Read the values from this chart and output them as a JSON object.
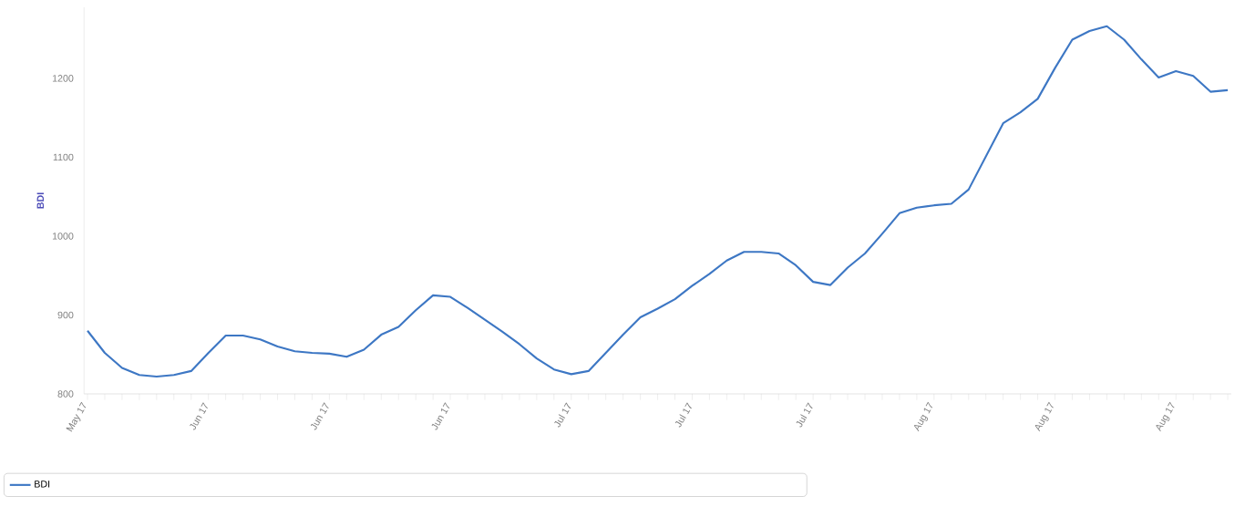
{
  "chart_data": {
    "type": "line",
    "ylabel": "BDI",
    "legend": "bottom",
    "marker": "none",
    "categories": [
      "May 17",
      null,
      null,
      null,
      null,
      null,
      null,
      "Jun 17",
      null,
      null,
      null,
      null,
      null,
      null,
      "Jun 17",
      null,
      null,
      null,
      null,
      null,
      null,
      "Jun 17",
      null,
      null,
      null,
      null,
      null,
      null,
      "Jul 17",
      null,
      null,
      null,
      null,
      null,
      null,
      "Jul 17",
      null,
      null,
      null,
      null,
      null,
      null,
      "Jul 17",
      null,
      null,
      null,
      null,
      null,
      null,
      "Aug 17",
      null,
      null,
      null,
      null,
      null,
      null,
      "Aug 17",
      null,
      null,
      null,
      null,
      null,
      null,
      "Aug 17",
      null,
      null,
      null
    ],
    "series": [
      {
        "name": "BDI",
        "color": "#3d77c4",
        "values": [
          880,
          852,
          833,
          824,
          822,
          824,
          829,
          852,
          874,
          874,
          869,
          860,
          854,
          852,
          851,
          847,
          856,
          875,
          885,
          906,
          925,
          923,
          909,
          894,
          879,
          863,
          845,
          831,
          825,
          829,
          852,
          875,
          897,
          908,
          920,
          937,
          952,
          969,
          980,
          980,
          978,
          963,
          942,
          938,
          960,
          978,
          1003,
          1029,
          1036,
          1039,
          1041,
          1059,
          1101,
          1143,
          1157,
          1174,
          1213,
          1249,
          1260,
          1266,
          1249,
          1224,
          1201,
          1209,
          1203,
          1183,
          1185
        ]
      }
    ],
    "ylim": [
      800,
      1290
    ],
    "yticks": [
      800,
      900,
      1000,
      1100,
      1200
    ]
  }
}
